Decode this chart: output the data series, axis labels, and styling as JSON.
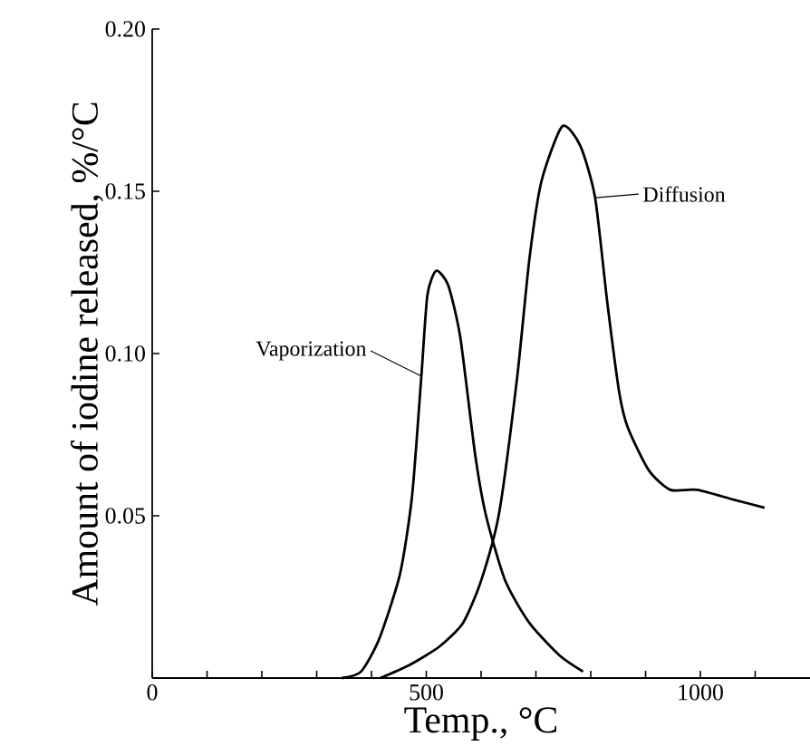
{
  "chart_data": {
    "type": "line",
    "xlabel": "Temp., °C",
    "ylabel": "Amount of iodine released, %/°C",
    "xlim": [
      0,
      1200
    ],
    "ylim": [
      0,
      0.2
    ],
    "xticks": [
      0,
      {
        "value": 100,
        "label": null
      },
      {
        "value": 200,
        "label": null
      },
      {
        "value": 300,
        "label": null
      },
      {
        "value": 400,
        "label": null
      },
      500,
      {
        "value": 600,
        "label": null
      },
      {
        "value": 700,
        "label": null
      },
      {
        "value": 800,
        "label": null
      },
      {
        "value": 900,
        "label": null
      },
      1000,
      {
        "value": 1100,
        "label": null
      }
    ],
    "yticks": [
      0.05,
      {
        "value": 0.1,
        "label": "0.10"
      },
      0.15,
      {
        "value": 0.2,
        "label": "0.20"
      }
    ],
    "annotations": [
      {
        "text": "Vaporization",
        "x": 491,
        "y": 0.093
      },
      {
        "text": "Diffusion",
        "x": 808,
        "y": 0.148
      }
    ],
    "grid": false,
    "legend": false,
    "marker": "none",
    "line_style": "solid",
    "series": [
      {
        "color": "#000000",
        "x": [
          346,
          381,
          414,
          452,
          474,
          491,
          502,
          518,
          540,
          562,
          589,
          609,
          644,
          688,
          743,
          786
        ],
        "values": [
          0,
          0.002,
          0.012,
          0.032,
          0.056,
          0.093,
          0.118,
          0.1255,
          0.121,
          0.105,
          0.069,
          0.05,
          0.03,
          0.017,
          0.007,
          0.002
        ]
      },
      {
        "color": "#000000",
        "x": [
          416,
          469,
          524,
          567,
          600,
          633,
          666,
          688,
          710,
          748,
          781,
          808,
          830,
          852,
          868,
          906,
          945,
          994,
          1060,
          1117
        ],
        "values": [
          0,
          0.004,
          0.0097,
          0.017,
          0.03,
          0.051,
          0.093,
          0.129,
          0.153,
          0.17,
          0.164,
          0.148,
          0.116,
          0.088,
          0.077,
          0.064,
          0.058,
          0.058,
          0.055,
          0.0525
        ]
      }
    ]
  }
}
